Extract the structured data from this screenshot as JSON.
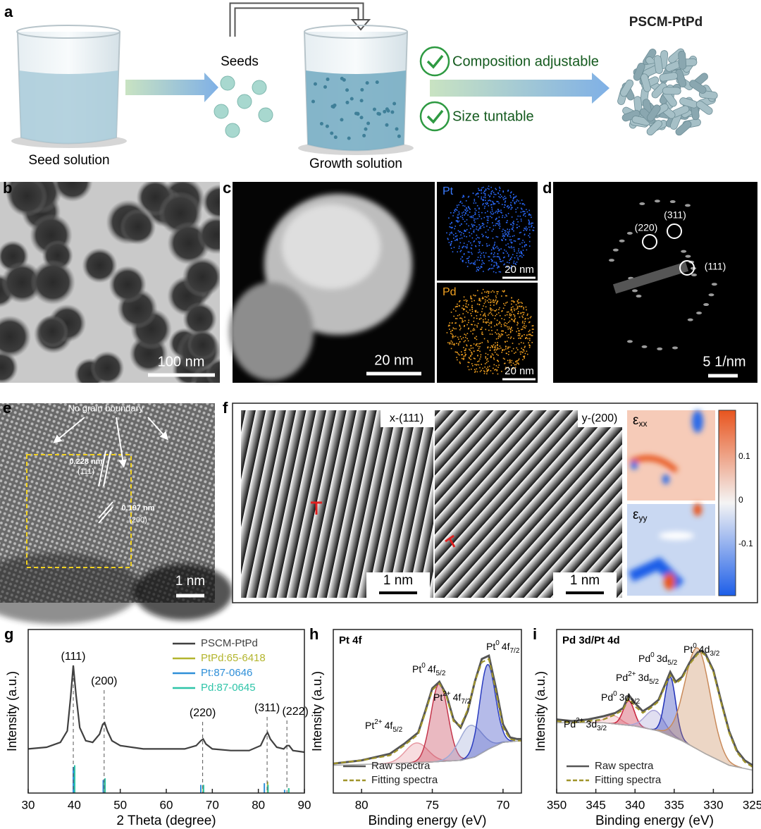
{
  "panel_a": {
    "label": "a",
    "seed_solution": "Seed solution",
    "seeds": "Seeds",
    "growth_solution": "Growth solution",
    "features": [
      "Composition adjustable",
      "Size tuntable"
    ],
    "product": "PSCM-PtPd"
  },
  "panel_b": {
    "label": "b",
    "scale_bar": "100 nm"
  },
  "panel_c": {
    "label": "c",
    "scale_bar": "20 nm",
    "maps": [
      {
        "element": "Pt",
        "scale_bar": "20 nm"
      },
      {
        "element": "Pd",
        "scale_bar": "20 nm"
      }
    ]
  },
  "panel_d": {
    "label": "d",
    "spots": [
      "(220)",
      "(311)",
      "(111)"
    ],
    "scale_bar": "5 1/nm"
  },
  "panel_e": {
    "label": "e",
    "annotation": "No grain boundary",
    "spacings": [
      {
        "distance": "0.228 nm",
        "plane": "(111)"
      },
      {
        "distance": "0.197 nm",
        "plane": "(200)"
      }
    ],
    "scale_bar": "1 nm"
  },
  "panel_f": {
    "label": "f",
    "phases": [
      {
        "title": "x-(111)",
        "scale_bar": "1 nm"
      },
      {
        "title": "y-(200)",
        "scale_bar": "1 nm"
      }
    ],
    "strain_maps": [
      {
        "sym": "ε",
        "sub": "xx"
      },
      {
        "sym": "ε",
        "sub": "yy"
      }
    ],
    "colorbar_ticks": [
      "0.1",
      "0",
      "-0.1"
    ]
  },
  "chart_data": [
    {
      "panel": "g",
      "type": "xrd",
      "xlabel": "2 Theta (degree)",
      "ylabel": "Intensity (a.u.)",
      "xlim": [
        30,
        90
      ],
      "xticks": [
        30,
        40,
        50,
        60,
        70,
        80,
        90
      ],
      "ylim": [
        0,
        1
      ],
      "series": [
        {
          "name": "PSCM-PtPd",
          "color": "#404040",
          "x": [
            30,
            34,
            37,
            38.5,
            39.2,
            39.8,
            40.4,
            41.2,
            42.5,
            44,
            45.5,
            46.2,
            46.6,
            47.2,
            48.2,
            50,
            55,
            60,
            64,
            66.5,
            67.5,
            68,
            68.6,
            70,
            74,
            78,
            80.5,
            81.5,
            82,
            82.6,
            84,
            85.5,
            86.2,
            86.7,
            87.5,
            90
          ],
          "values": [
            0.27,
            0.28,
            0.31,
            0.38,
            0.58,
            0.78,
            0.6,
            0.4,
            0.32,
            0.31,
            0.36,
            0.42,
            0.43,
            0.38,
            0.32,
            0.29,
            0.27,
            0.27,
            0.27,
            0.29,
            0.32,
            0.33,
            0.3,
            0.27,
            0.26,
            0.26,
            0.29,
            0.35,
            0.37,
            0.33,
            0.28,
            0.27,
            0.29,
            0.29,
            0.26,
            0.25
          ]
        }
      ],
      "references": [
        {
          "name": "PtPd:65-6418",
          "color": "#b3b52e",
          "x": [
            40.0,
            46.6,
            68.0,
            82.0,
            86.6
          ],
          "values": [
            0.13,
            0.07,
            0.05,
            0.07,
            0.03
          ]
        },
        {
          "name": "Pt:87-0646",
          "color": "#2f8fd8",
          "x": [
            39.8,
            46.3,
            67.5,
            81.3,
            85.7
          ],
          "values": [
            0.16,
            0.08,
            0.05,
            0.06,
            0.02
          ]
        },
        {
          "name": "Pd:87-0645",
          "color": "#2ec4a8",
          "x": [
            40.1,
            46.7,
            68.1,
            82.1,
            86.6
          ],
          "values": [
            0.17,
            0.09,
            0.05,
            0.05,
            0.03
          ]
        }
      ],
      "peaks": [
        {
          "label": "(111)",
          "x": 39.8
        },
        {
          "label": "(200)",
          "x": 46.5
        },
        {
          "label": "(220)",
          "x": 67.9
        },
        {
          "label": "(311)",
          "x": 81.9
        },
        {
          "label": "(222)",
          "x": 86.2
        }
      ]
    },
    {
      "panel": "h",
      "type": "xps",
      "title": "Pt 4f",
      "xlabel": "Binding energy (eV)",
      "ylabel": "Intensity (a.u.)",
      "xlim": [
        82,
        68.7
      ],
      "xticks": [
        80,
        75,
        70
      ],
      "ylim": [
        0,
        1
      ],
      "background": {
        "x": [
          82,
          78,
          75,
          73,
          72,
          71,
          70,
          68.7
        ],
        "values": [
          0.17,
          0.18,
          0.19,
          0.2,
          0.22,
          0.27,
          0.31,
          0.32
        ]
      },
      "components": [
        {
          "label": {
            "sym": "Pt",
            "sup": "2+",
            "orb": "4f",
            "sub": "5/2"
          },
          "color": "#e79aa3",
          "center": 76.1,
          "height": 0.12,
          "width": 0.8
        },
        {
          "label": {
            "sym": "Pt",
            "sup": "0",
            "orb": "4f",
            "sub": "5/2"
          },
          "color": "#c4364c",
          "center": 74.5,
          "height": 0.48,
          "width": 0.6
        },
        {
          "label": {
            "sym": "Pt",
            "sup": "2+",
            "orb": "4f",
            "sub": "7/2"
          },
          "color": "#9ea9d6",
          "center": 72.3,
          "height": 0.2,
          "width": 0.8
        },
        {
          "label": {
            "sym": "Pt",
            "sup": "0",
            "orb": "4f",
            "sub": "7/2"
          },
          "color": "#2a3cc0",
          "center": 71.1,
          "height": 0.52,
          "width": 0.55
        }
      ],
      "series": [
        {
          "name": "Raw spectra",
          "color": "#555555",
          "x": [
            82,
            80,
            78,
            77,
            76,
            75.5,
            75,
            74.5,
            74,
            73.5,
            73,
            72.5,
            72,
            71.5,
            71,
            70.5,
            70,
            69.5,
            69,
            68.7
          ],
          "values": [
            0.18,
            0.2,
            0.24,
            0.3,
            0.37,
            0.5,
            0.64,
            0.68,
            0.6,
            0.45,
            0.4,
            0.5,
            0.68,
            0.82,
            0.84,
            0.64,
            0.42,
            0.34,
            0.33,
            0.33
          ]
        },
        {
          "name": "Fitting spectra",
          "color": "#a0942a",
          "dash": true,
          "x": [
            82,
            80,
            78,
            77,
            76,
            75.5,
            75,
            74.5,
            74,
            73.5,
            73,
            72.5,
            72,
            71.5,
            71,
            70.5,
            70,
            69.5,
            69,
            68.7
          ],
          "values": [
            0.18,
            0.2,
            0.23,
            0.29,
            0.36,
            0.49,
            0.63,
            0.67,
            0.59,
            0.44,
            0.41,
            0.51,
            0.68,
            0.8,
            0.82,
            0.62,
            0.4,
            0.33,
            0.32,
            0.32
          ]
        }
      ]
    },
    {
      "panel": "i",
      "type": "xps",
      "title": "Pd 3d/Pt 4d",
      "xlabel": "Binding energy (eV)",
      "ylabel": "Intensity (a.u.)",
      "xlim": [
        350,
        325
      ],
      "xticks": [
        350,
        345,
        340,
        335,
        330,
        325
      ],
      "ylim": [
        0,
        1
      ],
      "background": {
        "x": [
          350,
          344,
          340,
          337,
          334,
          331,
          328,
          325
        ],
        "values": [
          0.43,
          0.43,
          0.41,
          0.38,
          0.32,
          0.24,
          0.17,
          0.14
        ]
      },
      "components": [
        {
          "label": {
            "sym": "Pd",
            "sup": "2+",
            "orb": "3d",
            "sub": "3/2"
          },
          "color": "#f0a9b0",
          "center": 342.8,
          "height": 0.05,
          "width": 1
        },
        {
          "label": {
            "sym": "Pd",
            "sup": "0",
            "orb": "3d",
            "sub": "3/2"
          },
          "color": "#c8203a",
          "center": 340.8,
          "height": 0.15,
          "width": 0.7
        },
        {
          "label": {
            "sym": "Pd",
            "sup": "2+",
            "orb": "3d",
            "sub": "5/2"
          },
          "color": "#a9a4d8",
          "center": 337.5,
          "height": 0.12,
          "width": 1.2
        },
        {
          "label": {
            "sym": "Pd",
            "sup": "0",
            "orb": "3d",
            "sub": "5/2"
          },
          "color": "#2030b8",
          "center": 335.5,
          "height": 0.36,
          "width": 0.7
        },
        {
          "label": {
            "sym": "Pt",
            "sup": "0",
            "orb": "4d",
            "sub": "3/2"
          },
          "color": "#c98a5a",
          "center": 332,
          "height": 0.62,
          "width": 1.6
        }
      ],
      "series": [
        {
          "name": "Raw spectra",
          "color": "#555555",
          "x": [
            350,
            348,
            346,
            344,
            342.5,
            341.5,
            340.8,
            340,
            339,
            338,
            337,
            336.2,
            335.5,
            334.8,
            334,
            333,
            332,
            331.5,
            331,
            330,
            329,
            328,
            327,
            326,
            325
          ],
          "values": [
            0.45,
            0.44,
            0.45,
            0.47,
            0.49,
            0.52,
            0.6,
            0.55,
            0.5,
            0.53,
            0.57,
            0.66,
            0.74,
            0.68,
            0.71,
            0.8,
            0.86,
            0.87,
            0.85,
            0.75,
            0.56,
            0.38,
            0.26,
            0.2,
            0.17
          ]
        },
        {
          "name": "Fitting spectra",
          "color": "#a0942a",
          "dash": true,
          "x": [
            350,
            348,
            346,
            344,
            342.5,
            341.5,
            340.8,
            340,
            339,
            338,
            337,
            336.2,
            335.5,
            334.8,
            334,
            333,
            332,
            331.5,
            331,
            330,
            329,
            328,
            327,
            326,
            325
          ],
          "values": [
            0.44,
            0.43,
            0.44,
            0.45,
            0.48,
            0.51,
            0.58,
            0.53,
            0.49,
            0.52,
            0.56,
            0.65,
            0.72,
            0.67,
            0.7,
            0.79,
            0.85,
            0.86,
            0.84,
            0.74,
            0.55,
            0.37,
            0.25,
            0.19,
            0.16
          ]
        }
      ]
    }
  ]
}
